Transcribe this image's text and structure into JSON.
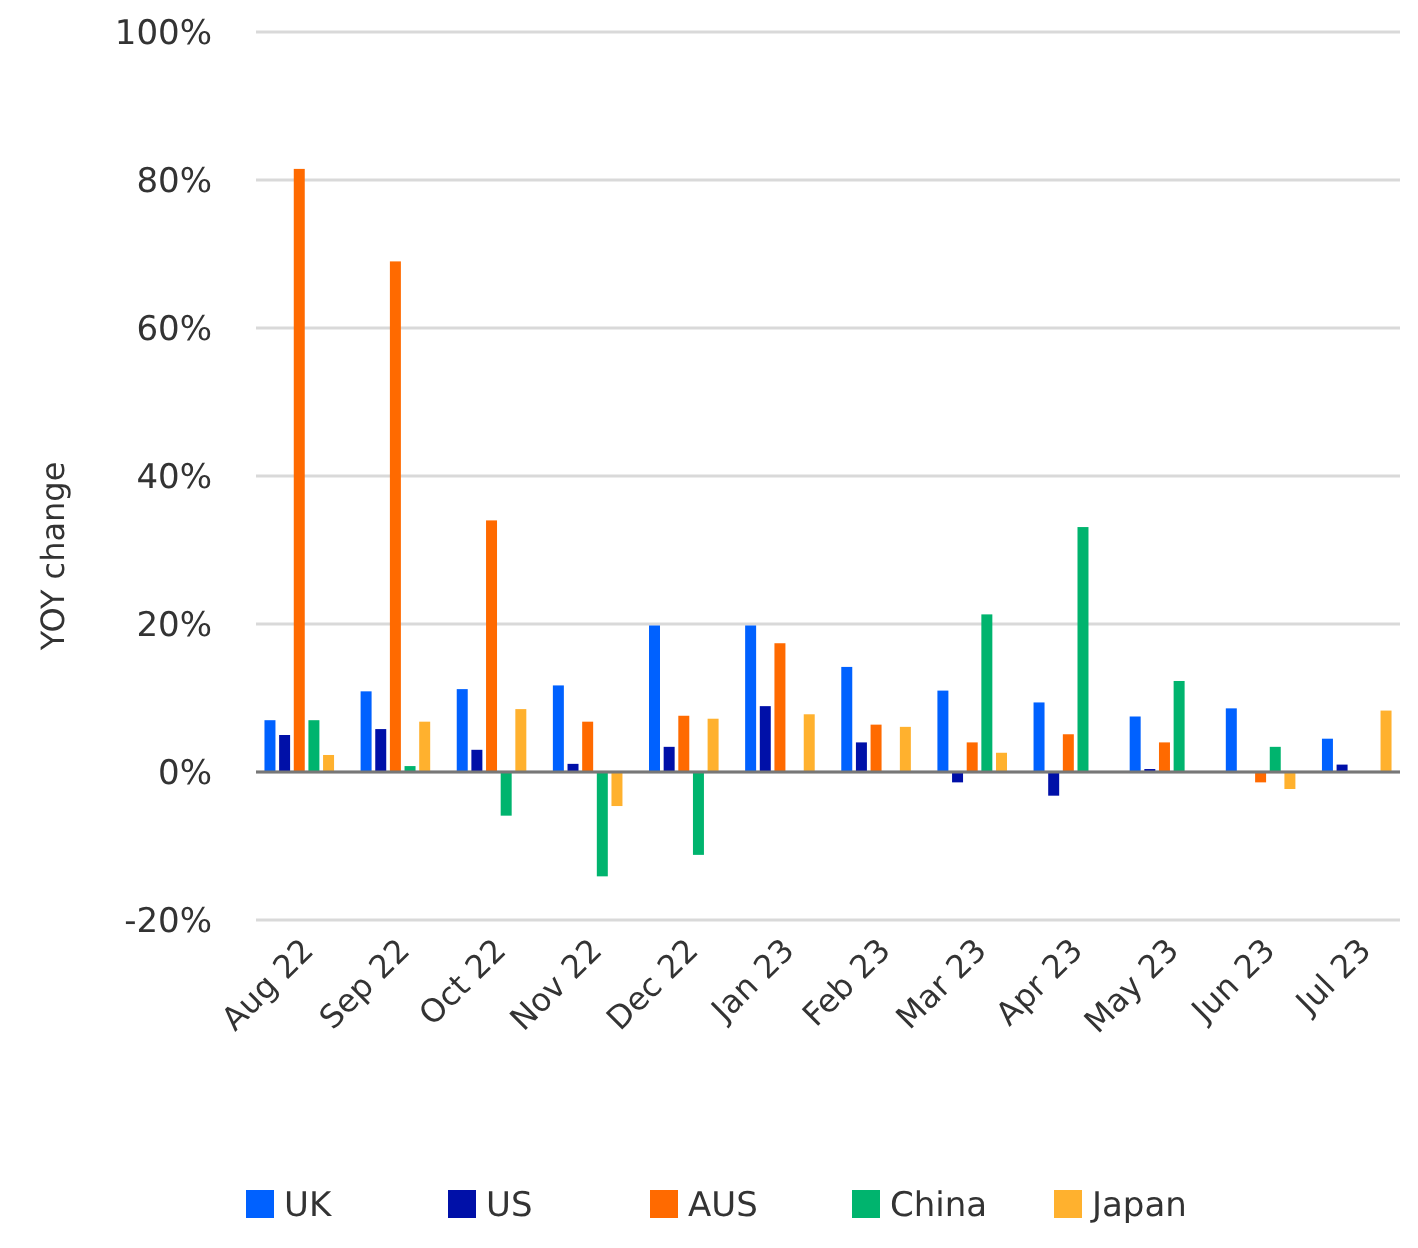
{
  "chart_data": {
    "type": "bar",
    "ylabel": "YOY change",
    "categories": [
      "Aug 22",
      "Sep 22",
      "Oct 22",
      "Nov 22",
      "Dec 22",
      "Jan 23",
      "Feb 23",
      "Mar 23",
      "Apr 23",
      "May 23",
      "Jun 23",
      "Jul 23"
    ],
    "series": [
      {
        "name": "UK",
        "color": "#0061ff",
        "values": [
          7.0,
          10.9,
          11.2,
          11.7,
          19.8,
          19.8,
          14.2,
          11.0,
          9.4,
          7.5,
          8.6,
          4.5
        ]
      },
      {
        "name": "US",
        "color": "#0010a8",
        "values": [
          5.0,
          5.8,
          3.0,
          1.1,
          3.4,
          8.9,
          4.0,
          -1.4,
          -3.2,
          0.4,
          0.1,
          1.0
        ]
      },
      {
        "name": "AUS",
        "color": "#ff6a00",
        "values": [
          81.5,
          69.0,
          34.0,
          6.8,
          7.6,
          17.4,
          6.4,
          4.0,
          5.1,
          4.0,
          -1.4,
          null
        ]
      },
      {
        "name": "China",
        "color": "#00b46e",
        "values": [
          7.0,
          0.8,
          -5.9,
          -14.1,
          -11.2,
          null,
          null,
          21.3,
          33.1,
          12.3,
          3.4,
          -0.1
        ]
      },
      {
        "name": "Japan",
        "color": "#ffb12e",
        "values": [
          2.3,
          6.8,
          8.5,
          -4.6,
          7.2,
          7.8,
          6.1,
          2.6,
          null,
          null,
          -2.3,
          8.3
        ]
      }
    ],
    "ylim": [
      -20,
      100
    ],
    "yticks": [
      {
        "value": -20,
        "label": "-20%"
      },
      {
        "value": 0,
        "label": "0%"
      },
      {
        "value": 20,
        "label": "20%"
      },
      {
        "value": 40,
        "label": "40%"
      },
      {
        "value": 60,
        "label": "60%"
      },
      {
        "value": 80,
        "label": "80%"
      },
      {
        "value": 100,
        "label": "100%"
      }
    ],
    "grid": "y",
    "legend": "bottom"
  }
}
